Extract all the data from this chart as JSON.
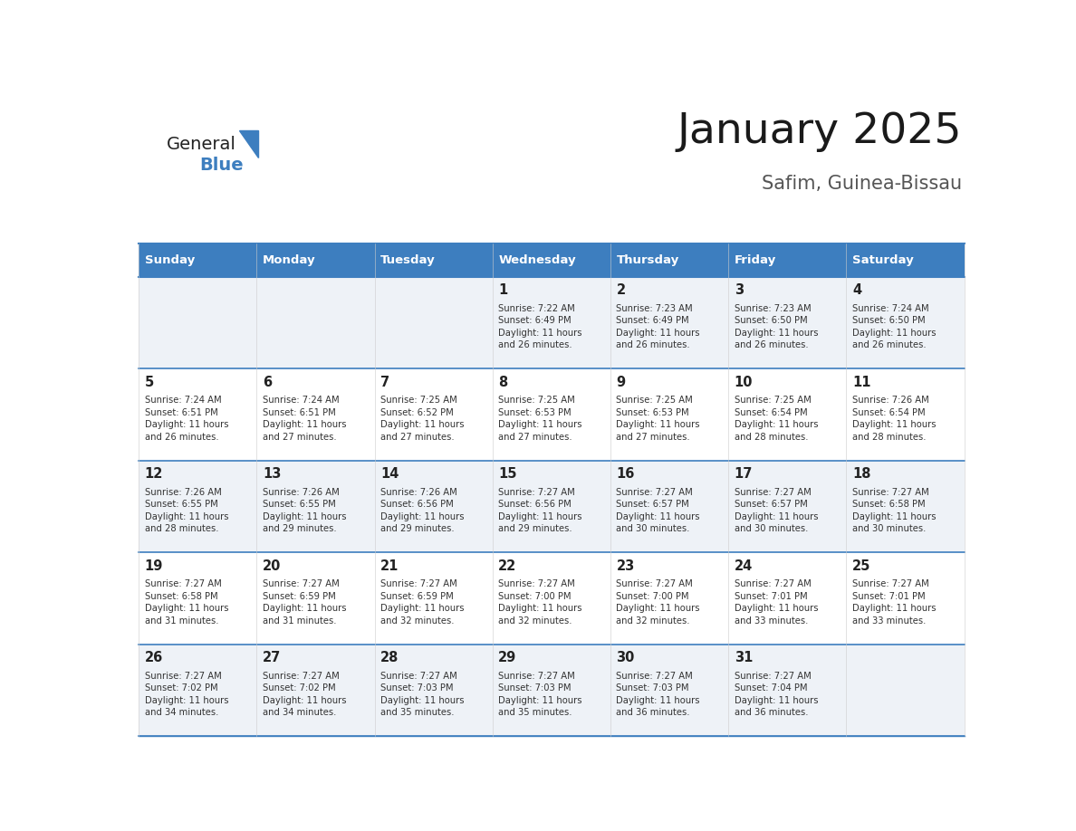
{
  "title": "January 2025",
  "subtitle": "Safim, Guinea-Bissau",
  "header_color": "#3d7ebf",
  "header_text_color": "#ffffff",
  "day_names": [
    "Sunday",
    "Monday",
    "Tuesday",
    "Wednesday",
    "Thursday",
    "Friday",
    "Saturday"
  ],
  "cell_bg_even": "#eef2f7",
  "cell_bg_odd": "#ffffff",
  "border_color": "#3d7ebf",
  "text_color": "#333333",
  "logo_general_color": "#222222",
  "logo_blue_color": "#3d7ebf",
  "calendar": [
    [
      {
        "day": "",
        "sunrise": "",
        "sunset": "",
        "daylight": ""
      },
      {
        "day": "",
        "sunrise": "",
        "sunset": "",
        "daylight": ""
      },
      {
        "day": "",
        "sunrise": "",
        "sunset": "",
        "daylight": ""
      },
      {
        "day": "1",
        "sunrise": "7:22 AM",
        "sunset": "6:49 PM",
        "daylight": "11 hours and 26 minutes."
      },
      {
        "day": "2",
        "sunrise": "7:23 AM",
        "sunset": "6:49 PM",
        "daylight": "11 hours and 26 minutes."
      },
      {
        "day": "3",
        "sunrise": "7:23 AM",
        "sunset": "6:50 PM",
        "daylight": "11 hours and 26 minutes."
      },
      {
        "day": "4",
        "sunrise": "7:24 AM",
        "sunset": "6:50 PM",
        "daylight": "11 hours and 26 minutes."
      }
    ],
    [
      {
        "day": "5",
        "sunrise": "7:24 AM",
        "sunset": "6:51 PM",
        "daylight": "11 hours and 26 minutes."
      },
      {
        "day": "6",
        "sunrise": "7:24 AM",
        "sunset": "6:51 PM",
        "daylight": "11 hours and 27 minutes."
      },
      {
        "day": "7",
        "sunrise": "7:25 AM",
        "sunset": "6:52 PM",
        "daylight": "11 hours and 27 minutes."
      },
      {
        "day": "8",
        "sunrise": "7:25 AM",
        "sunset": "6:53 PM",
        "daylight": "11 hours and 27 minutes."
      },
      {
        "day": "9",
        "sunrise": "7:25 AM",
        "sunset": "6:53 PM",
        "daylight": "11 hours and 27 minutes."
      },
      {
        "day": "10",
        "sunrise": "7:25 AM",
        "sunset": "6:54 PM",
        "daylight": "11 hours and 28 minutes."
      },
      {
        "day": "11",
        "sunrise": "7:26 AM",
        "sunset": "6:54 PM",
        "daylight": "11 hours and 28 minutes."
      }
    ],
    [
      {
        "day": "12",
        "sunrise": "7:26 AM",
        "sunset": "6:55 PM",
        "daylight": "11 hours and 28 minutes."
      },
      {
        "day": "13",
        "sunrise": "7:26 AM",
        "sunset": "6:55 PM",
        "daylight": "11 hours and 29 minutes."
      },
      {
        "day": "14",
        "sunrise": "7:26 AM",
        "sunset": "6:56 PM",
        "daylight": "11 hours and 29 minutes."
      },
      {
        "day": "15",
        "sunrise": "7:27 AM",
        "sunset": "6:56 PM",
        "daylight": "11 hours and 29 minutes."
      },
      {
        "day": "16",
        "sunrise": "7:27 AM",
        "sunset": "6:57 PM",
        "daylight": "11 hours and 30 minutes."
      },
      {
        "day": "17",
        "sunrise": "7:27 AM",
        "sunset": "6:57 PM",
        "daylight": "11 hours and 30 minutes."
      },
      {
        "day": "18",
        "sunrise": "7:27 AM",
        "sunset": "6:58 PM",
        "daylight": "11 hours and 30 minutes."
      }
    ],
    [
      {
        "day": "19",
        "sunrise": "7:27 AM",
        "sunset": "6:58 PM",
        "daylight": "11 hours and 31 minutes."
      },
      {
        "day": "20",
        "sunrise": "7:27 AM",
        "sunset": "6:59 PM",
        "daylight": "11 hours and 31 minutes."
      },
      {
        "day": "21",
        "sunrise": "7:27 AM",
        "sunset": "6:59 PM",
        "daylight": "11 hours and 32 minutes."
      },
      {
        "day": "22",
        "sunrise": "7:27 AM",
        "sunset": "7:00 PM",
        "daylight": "11 hours and 32 minutes."
      },
      {
        "day": "23",
        "sunrise": "7:27 AM",
        "sunset": "7:00 PM",
        "daylight": "11 hours and 32 minutes."
      },
      {
        "day": "24",
        "sunrise": "7:27 AM",
        "sunset": "7:01 PM",
        "daylight": "11 hours and 33 minutes."
      },
      {
        "day": "25",
        "sunrise": "7:27 AM",
        "sunset": "7:01 PM",
        "daylight": "11 hours and 33 minutes."
      }
    ],
    [
      {
        "day": "26",
        "sunrise": "7:27 AM",
        "sunset": "7:02 PM",
        "daylight": "11 hours and 34 minutes."
      },
      {
        "day": "27",
        "sunrise": "7:27 AM",
        "sunset": "7:02 PM",
        "daylight": "11 hours and 34 minutes."
      },
      {
        "day": "28",
        "sunrise": "7:27 AM",
        "sunset": "7:03 PM",
        "daylight": "11 hours and 35 minutes."
      },
      {
        "day": "29",
        "sunrise": "7:27 AM",
        "sunset": "7:03 PM",
        "daylight": "11 hours and 35 minutes."
      },
      {
        "day": "30",
        "sunrise": "7:27 AM",
        "sunset": "7:03 PM",
        "daylight": "11 hours and 36 minutes."
      },
      {
        "day": "31",
        "sunrise": "7:27 AM",
        "sunset": "7:04 PM",
        "daylight": "11 hours and 36 minutes."
      },
      {
        "day": "",
        "sunrise": "",
        "sunset": "",
        "daylight": ""
      }
    ]
  ]
}
